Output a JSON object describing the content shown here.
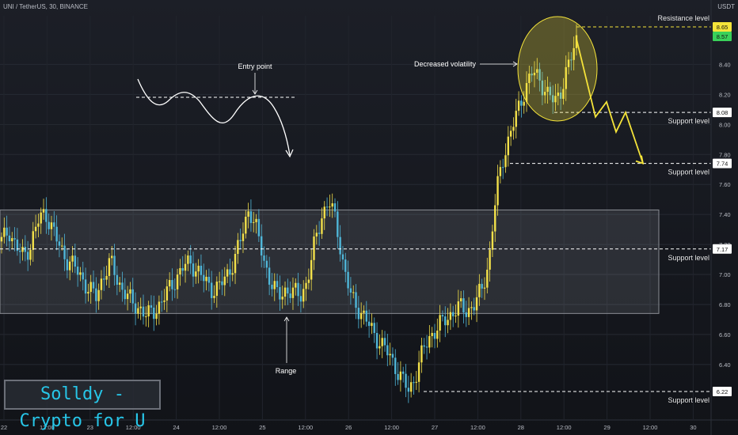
{
  "header": {
    "symbol": "UNI / TetherUS, 30, BINANCE",
    "unit": "USDT"
  },
  "brand": {
    "text": "Solldy - Crypto for U"
  },
  "colors": {
    "background": "#14161c",
    "up_candle": "#f2e04a",
    "down_candle": "#4fb6d8",
    "annotation_yellow": "#f5e43a",
    "range_box": "#8a8d94",
    "price_tag_yellow": "#f5e43a",
    "price_tag_green": "#39d15a"
  },
  "chart_data": {
    "type": "candlestick",
    "y_axis": {
      "ticks": [
        "8.40",
        "8.20",
        "8.00",
        "7.80",
        "7.60",
        "7.40",
        "7.20",
        "7.00",
        "6.80",
        "6.60",
        "6.40"
      ],
      "ylim": [
        6.2,
        8.7
      ]
    },
    "x_axis": {
      "ticks": [
        "22",
        "12:00",
        "23",
        "12:00",
        "24",
        "12:00",
        "25",
        "12:00",
        "26",
        "12:00",
        "27",
        "12:00",
        "28",
        "12:00",
        "29",
        "12:00",
        "30"
      ]
    },
    "price_tags": [
      {
        "value": "8.65",
        "color": "yellow"
      },
      {
        "value": "8.57",
        "color": "green"
      },
      {
        "value": "8.08",
        "color": "white"
      },
      {
        "value": "7.74",
        "color": "white"
      },
      {
        "value": "7.17",
        "color": "white"
      },
      {
        "value": "6.22",
        "color": "white"
      }
    ],
    "levels": [
      {
        "label": "Resistance level",
        "price": 8.65
      },
      {
        "label": "Support level",
        "price": 8.08
      },
      {
        "label": "Support level",
        "price": 7.74
      },
      {
        "label": "Support level",
        "price": 7.17
      },
      {
        "label": "Support level",
        "price": 6.22
      }
    ],
    "annotations": {
      "entry_point": "Entry point",
      "range": "Range",
      "decreased_volatility": "Decreased volatility"
    },
    "range_box": {
      "low": 6.74,
      "high": 7.43
    },
    "price_path": [
      7.22,
      7.3,
      7.18,
      7.12,
      7.2,
      7.35,
      7.42,
      7.3,
      7.18,
      7.1,
      7.05,
      6.98,
      6.9,
      6.85,
      7.0,
      7.08,
      6.95,
      6.88,
      6.8,
      6.78,
      6.72,
      6.76,
      6.82,
      6.9,
      6.98,
      7.05,
      7.08,
      7.02,
      6.95,
      6.9,
      6.92,
      7.0,
      7.1,
      7.25,
      7.45,
      7.3,
      7.1,
      6.95,
      6.85,
      6.9,
      6.88,
      6.86,
      6.95,
      7.2,
      7.4,
      7.48,
      7.35,
      7.05,
      6.85,
      6.78,
      6.7,
      6.62,
      6.55,
      6.48,
      6.4,
      6.3,
      6.22,
      6.35,
      6.5,
      6.6,
      6.65,
      6.7,
      6.75,
      6.78,
      6.76,
      6.8,
      6.9,
      7.1,
      7.55,
      7.8,
      7.95,
      8.1,
      8.25,
      8.35,
      8.3,
      8.2,
      8.15,
      8.25,
      8.4,
      8.57
    ],
    "projection": [
      8.57,
      8.05,
      8.15,
      7.95,
      8.08,
      7.74
    ]
  }
}
